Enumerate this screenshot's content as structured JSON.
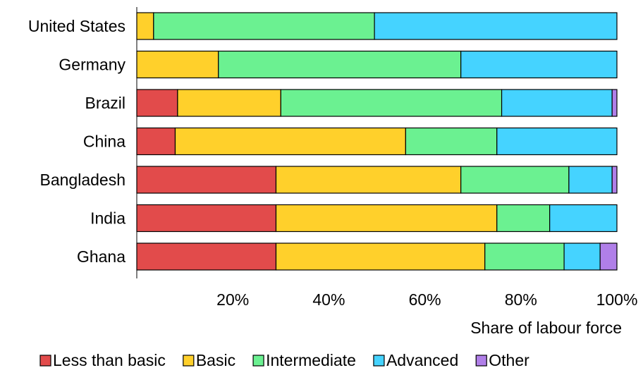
{
  "chart_data": {
    "type": "bar",
    "orientation": "horizontal",
    "stacked": true,
    "categories": [
      "United States",
      "Germany",
      "Brazil",
      "China",
      "Bangladesh",
      "India",
      "Ghana"
    ],
    "series": [
      {
        "name": "Less than basic",
        "color": "#E24B4B",
        "values": [
          0,
          0,
          8.5,
          8,
          29,
          29,
          29
        ]
      },
      {
        "name": "Basic",
        "color": "#FFD02B",
        "values": [
          3.5,
          17,
          21.5,
          48,
          38.5,
          46,
          43.5
        ]
      },
      {
        "name": "Intermediate",
        "color": "#6BF191",
        "values": [
          46,
          50.5,
          46,
          19,
          22.5,
          11,
          16.5
        ]
      },
      {
        "name": "Advanced",
        "color": "#45D3FF",
        "values": [
          50.5,
          32.5,
          23,
          25,
          9,
          14,
          7.5
        ]
      },
      {
        "name": "Other",
        "color": "#B07FE8",
        "values": [
          0,
          0,
          1,
          0,
          1,
          0,
          3.5
        ]
      }
    ],
    "xlabel": "Share of labour force",
    "ylabel": "",
    "xlim": [
      0,
      100
    ],
    "xticks": [
      "20%",
      "40%",
      "60%",
      "80%",
      "100%"
    ],
    "xtick_values": [
      20,
      40,
      60,
      80,
      100
    ],
    "legend_position": "bottom",
    "grid": false
  }
}
